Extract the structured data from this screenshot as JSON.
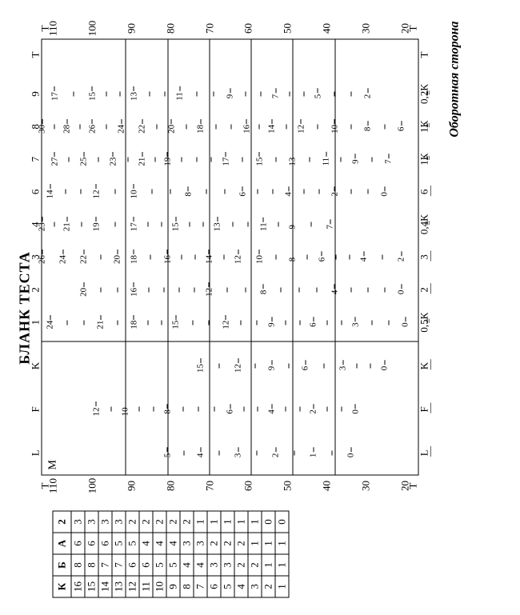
{
  "title": "БЛАНК ТЕСТА",
  "footer": "Оборотная сторона",
  "correction_table": {
    "headers": [
      "К",
      "Б",
      "А",
      "2"
    ],
    "rows": [
      [
        16,
        8,
        6,
        3
      ],
      [
        15,
        8,
        6,
        3
      ],
      [
        14,
        7,
        6,
        3
      ],
      [
        13,
        7,
        5,
        3
      ],
      [
        12,
        6,
        5,
        2
      ],
      [
        11,
        6,
        4,
        2
      ],
      [
        10,
        5,
        4,
        2
      ],
      [
        9,
        5,
        4,
        2
      ],
      [
        8,
        4,
        3,
        2
      ],
      [
        7,
        4,
        3,
        1
      ],
      [
        6,
        3,
        2,
        1
      ],
      [
        5,
        3,
        2,
        1
      ],
      [
        4,
        2,
        2,
        1
      ],
      [
        3,
        2,
        1,
        1
      ],
      [
        2,
        1,
        1,
        0
      ],
      [
        1,
        1,
        1,
        0
      ]
    ]
  },
  "t_axis": {
    "top": "Т",
    "bottom": "Т",
    "ticks": [
      110,
      100,
      90,
      80,
      70,
      60,
      50,
      40,
      30,
      20
    ]
  },
  "profile": {
    "M_label": "М",
    "inner_divider_pct": 30.5,
    "heavy_hlines_at_T": [
      90,
      80,
      70,
      60,
      50,
      40
    ],
    "scales": [
      {
        "key": "L",
        "label": "L",
        "bottom": "L",
        "center_pct": 5,
        "points": [
          [
            80,
            5
          ],
          [
            72,
            4
          ],
          [
            63,
            3
          ],
          [
            54,
            2
          ],
          [
            45,
            1
          ],
          [
            36,
            0
          ]
        ]
      },
      {
        "key": "F",
        "label": "F",
        "bottom": "F",
        "center_pct": 15,
        "points": [
          [
            97,
            12
          ],
          [
            90,
            10
          ],
          [
            80,
            8
          ],
          [
            65,
            6
          ],
          [
            55,
            4
          ],
          [
            45,
            2
          ],
          [
            35,
            0
          ]
        ]
      },
      {
        "key": "K",
        "label": "K",
        "bottom": "K",
        "center_pct": 25,
        "points": [
          [
            72,
            15
          ],
          [
            63,
            12
          ],
          [
            55,
            9
          ],
          [
            47,
            6
          ],
          [
            38,
            3
          ],
          [
            28,
            0
          ]
        ]
      },
      {
        "key": "1",
        "label": "1",
        "bottom": "0,5К",
        "center_pct": 35,
        "points": [
          [
            108,
            24
          ],
          [
            96,
            21
          ],
          [
            88,
            18
          ],
          [
            78,
            15
          ],
          [
            66,
            12
          ],
          [
            55,
            9
          ],
          [
            45,
            6
          ],
          [
            35,
            3
          ],
          [
            23,
            0
          ]
        ]
      },
      {
        "key": "2",
        "label": "2",
        "bottom": "2",
        "center_pct": 42.5,
        "points": [
          [
            100,
            20
          ],
          [
            88,
            16
          ],
          [
            70,
            12
          ],
          [
            57,
            8
          ],
          [
            40,
            4
          ],
          [
            24,
            0
          ]
        ]
      },
      {
        "key": "3",
        "label": "3",
        "bottom": "3",
        "center_pct": 50,
        "points": [
          [
            110,
            26
          ],
          [
            105,
            24
          ],
          [
            100,
            22
          ],
          [
            92,
            20
          ],
          [
            88,
            18
          ],
          [
            80,
            16
          ],
          [
            70,
            14
          ],
          [
            63,
            12
          ],
          [
            58,
            10
          ],
          [
            50,
            8
          ],
          [
            43,
            6
          ],
          [
            33,
            4
          ],
          [
            24,
            2
          ]
        ]
      },
      {
        "key": "4",
        "label": "4",
        "bottom": "0,4К",
        "center_pct": 57.5,
        "points": [
          [
            110,
            23
          ],
          [
            104,
            21
          ],
          [
            97,
            19
          ],
          [
            88,
            17
          ],
          [
            78,
            15
          ],
          [
            68,
            13
          ],
          [
            57,
            11
          ],
          [
            50,
            9
          ],
          [
            41,
            7
          ]
        ]
      },
      {
        "key": "6",
        "label": "6",
        "bottom": "6",
        "center_pct": 65,
        "points": [
          [
            108,
            14
          ],
          [
            97,
            12
          ],
          [
            88,
            10
          ],
          [
            75,
            8
          ],
          [
            62,
            6
          ],
          [
            51,
            4
          ],
          [
            40,
            2
          ],
          [
            28,
            0
          ]
        ]
      },
      {
        "key": "7",
        "label": "7",
        "bottom": "1К",
        "center_pct": 72.5,
        "points": [
          [
            107,
            27
          ],
          [
            100,
            25
          ],
          [
            93,
            23
          ],
          [
            86,
            21
          ],
          [
            80,
            19
          ],
          [
            66,
            17
          ],
          [
            58,
            15
          ],
          [
            50,
            13
          ],
          [
            42,
            11
          ],
          [
            35,
            9
          ],
          [
            27,
            7
          ]
        ]
      },
      {
        "key": "8",
        "label": "8",
        "bottom": "1К",
        "center_pct": 80,
        "points": [
          [
            110,
            30
          ],
          [
            104,
            28
          ],
          [
            98,
            26
          ],
          [
            91,
            24
          ],
          [
            86,
            22
          ],
          [
            79,
            20
          ],
          [
            72,
            18
          ],
          [
            61,
            16
          ],
          [
            55,
            14
          ],
          [
            48,
            12
          ],
          [
            40,
            10
          ],
          [
            32,
            8
          ],
          [
            24,
            6
          ]
        ]
      },
      {
        "key": "9",
        "label": "9",
        "bottom": "0,2К",
        "center_pct": 87.5,
        "points": [
          [
            107,
            17
          ],
          [
            98,
            15
          ],
          [
            88,
            13
          ],
          [
            77,
            11
          ],
          [
            65,
            9
          ],
          [
            54,
            7
          ],
          [
            44,
            5
          ],
          [
            32,
            2
          ]
        ]
      },
      {
        "key": "T",
        "label": "Т",
        "bottom": "Т",
        "center_pct": 96.5,
        "hide": true
      }
    ]
  },
  "k_correction_row": {
    "left_blanks": [
      "L",
      "F",
      "K"
    ],
    "marks": [
      {
        "at": 35,
        "tri": "≡"
      },
      {
        "at": 42.5,
        "dash": "—"
      },
      {
        "at": 50,
        "dash": "—"
      },
      {
        "at": 57.5,
        "tri": "≡"
      },
      {
        "at": 65,
        "dash": "—"
      },
      {
        "at": 72.5,
        "tri": "≡"
      },
      {
        "at": 80,
        "tri": "≡"
      },
      {
        "at": 87.5,
        "tri": "≡"
      }
    ]
  },
  "colors": {
    "ink": "#000",
    "bg": "#fff"
  }
}
